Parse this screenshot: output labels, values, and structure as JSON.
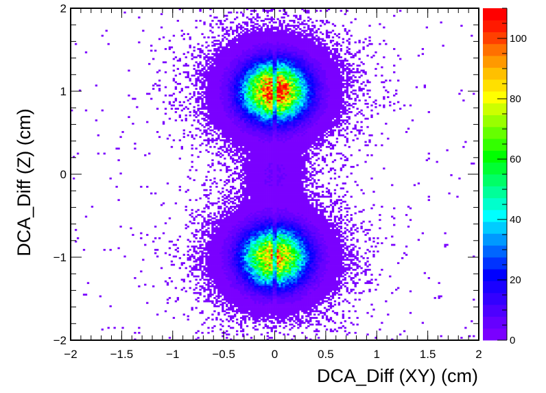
{
  "chart_data": {
    "type": "heatmap",
    "title": "",
    "xlabel": "DCA_Diff (XY) (cm)",
    "ylabel": "DCA_Diff (Z) (cm)",
    "xlim": [
      -2,
      2
    ],
    "ylim": [
      -2,
      2
    ],
    "x_ticks": [
      "−2",
      "−1.5",
      "−1",
      "−0.5",
      "0",
      "0.5",
      "1",
      "1.5",
      "2"
    ],
    "x_tick_values": [
      -2,
      -1.5,
      -1,
      -0.5,
      0,
      0.5,
      1,
      1.5,
      2
    ],
    "y_ticks": [
      "−2",
      "−1",
      "0",
      "1",
      "2"
    ],
    "y_tick_values": [
      -2,
      -1,
      0,
      1,
      2
    ],
    "colorbar": {
      "range": [
        0,
        110
      ],
      "ticks": [
        "0",
        "20",
        "40",
        "60",
        "80",
        "100"
      ],
      "tick_values": [
        0,
        20,
        40,
        60,
        80,
        100
      ],
      "palette": [
        "#7a00ff",
        "#6600ff",
        "#4d00ff",
        "#3300ff",
        "#1a00ff",
        "#0000ff",
        "#0033ff",
        "#0066ff",
        "#0099ff",
        "#00ccff",
        "#00ffff",
        "#00ffcc",
        "#00ff99",
        "#00ff66",
        "#00ff33",
        "#00ff00",
        "#33ff00",
        "#66ff00",
        "#99ff00",
        "#ccff00",
        "#ffff00",
        "#ffe000",
        "#ffc000",
        "#ff9900",
        "#ff7000",
        "#ff4000",
        "#ff1a00",
        "#ff0000"
      ]
    },
    "grid": false,
    "clusters": [
      {
        "name": "upper",
        "center_x": 0.0,
        "center_y": 1.0,
        "sigma_x": 0.2,
        "sigma_y": 0.22,
        "peak": 105
      },
      {
        "name": "lower",
        "center_x": 0.0,
        "center_y": -1.0,
        "sigma_x": 0.2,
        "sigma_y": 0.22,
        "peak": 90
      },
      {
        "name": "middle",
        "center_x": 0.0,
        "center_y": 0.0,
        "sigma_x": 0.15,
        "sigma_y": 0.2,
        "peak": 4
      }
    ],
    "central_gap_x": 0.0
  }
}
